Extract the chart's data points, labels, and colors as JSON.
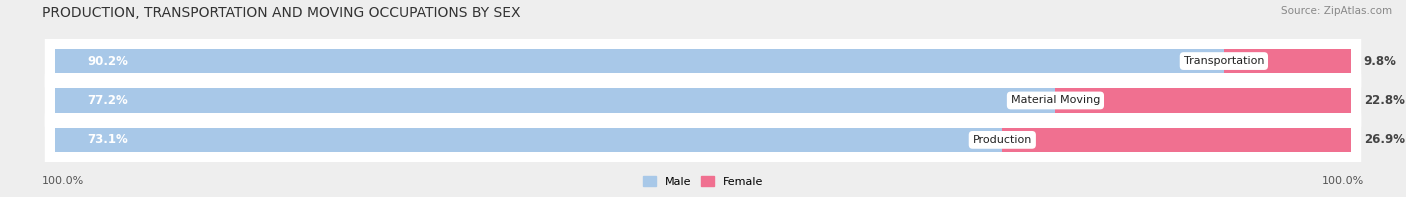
{
  "title": "PRODUCTION, TRANSPORTATION AND MOVING OCCUPATIONS BY SEX",
  "source_text": "Source: ZipAtlas.com",
  "categories": [
    "Transportation",
    "Material Moving",
    "Production"
  ],
  "male_values": [
    90.2,
    77.2,
    73.1
  ],
  "female_values": [
    9.8,
    22.8,
    26.9
  ],
  "male_color": "#a8c8e8",
  "female_color": "#f07090",
  "bg_color": "#eeeeee",
  "row_bg_color": "#f8f8fc",
  "title_fontsize": 10,
  "source_fontsize": 7.5,
  "axis_label_fontsize": 8,
  "bar_label_fontsize": 8.5,
  "cat_label_fontsize": 8,
  "left_axis_label": "100.0%",
  "right_axis_label": "100.0%",
  "x_min": 0.0,
  "x_max": 100.0,
  "bar_total": 100.0
}
